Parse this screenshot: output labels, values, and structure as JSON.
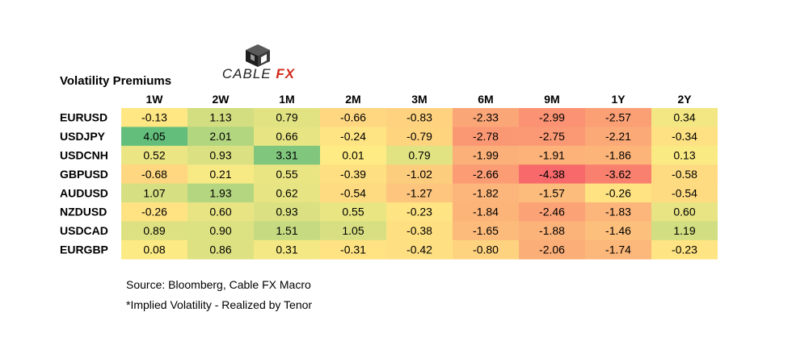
{
  "logo": {
    "brand": "CABLE",
    "brand_accent": "FX",
    "icon": "cube-logo-icon"
  },
  "chart_data": {
    "type": "heatmap",
    "title": "Volatility Premiums",
    "columns": [
      "1W",
      "2W",
      "1M",
      "2M",
      "3M",
      "6M",
      "9M",
      "1Y",
      "2Y"
    ],
    "rows": [
      "EURUSD",
      "USDJPY",
      "USDCNH",
      "GBPUSD",
      "AUDUSD",
      "NZDUSD",
      "USDCAD",
      "EURGBP"
    ],
    "values": [
      [
        -0.13,
        1.13,
        0.79,
        -0.66,
        -0.83,
        -2.33,
        -2.99,
        -2.57,
        0.34
      ],
      [
        4.05,
        2.01,
        0.66,
        -0.24,
        -0.79,
        -2.78,
        -2.75,
        -2.21,
        -0.34
      ],
      [
        0.52,
        0.93,
        3.31,
        0.01,
        0.79,
        -1.99,
        -1.91,
        -1.86,
        0.13
      ],
      [
        -0.68,
        0.21,
        0.55,
        -0.39,
        -1.02,
        -2.66,
        -4.38,
        -3.62,
        -0.58
      ],
      [
        1.07,
        1.93,
        0.62,
        -0.54,
        -1.27,
        -1.82,
        -1.57,
        -0.26,
        -0.54
      ],
      [
        -0.26,
        0.6,
        0.93,
        0.55,
        -0.23,
        -1.84,
        -2.46,
        -1.83,
        0.6
      ],
      [
        0.89,
        0.9,
        1.51,
        1.05,
        -0.38,
        -1.65,
        -1.88,
        -1.46,
        1.19
      ],
      [
        0.08,
        0.86,
        0.31,
        -0.31,
        -0.42,
        -0.8,
        -2.06,
        -1.74,
        -0.23
      ]
    ],
    "color_scale": {
      "low": "#f8696b",
      "mid": "#ffeb84",
      "high": "#63be7b"
    }
  },
  "footer": {
    "source": "Source: Bloomberg, Cable FX Macro",
    "note": "*Implied Volatility - Realized by Tenor"
  }
}
